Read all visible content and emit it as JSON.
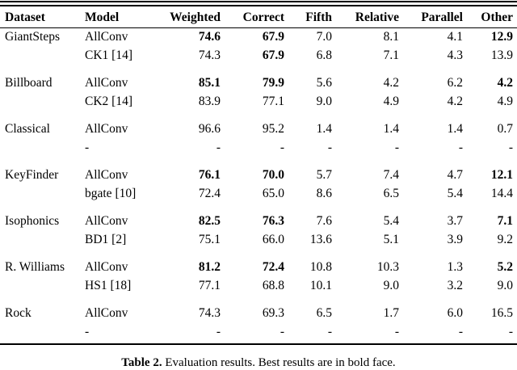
{
  "page": {
    "background": "#ffffff",
    "text_color": "#000000"
  },
  "table": {
    "columns": [
      "Dataset",
      "Model",
      "Weighted",
      "Correct",
      "Fifth",
      "Relative",
      "Parallel",
      "Other"
    ],
    "groups": [
      {
        "dataset": "GiantSteps",
        "rows": [
          {
            "model": "AllConv",
            "values": [
              "74.6",
              "67.9",
              "7.0",
              "8.1",
              "4.1",
              "12.9"
            ],
            "bold": [
              1,
              1,
              0,
              0,
              0,
              1
            ]
          },
          {
            "model": "CK1 [14]",
            "values": [
              "74.3",
              "67.9",
              "6.8",
              "7.1",
              "4.3",
              "13.9"
            ],
            "bold": [
              0,
              1,
              0,
              0,
              0,
              0
            ]
          }
        ]
      },
      {
        "dataset": "Billboard",
        "rows": [
          {
            "model": "AllConv",
            "values": [
              "85.1",
              "79.9",
              "5.6",
              "4.2",
              "6.2",
              "4.2"
            ],
            "bold": [
              1,
              1,
              0,
              0,
              0,
              1
            ]
          },
          {
            "model": "CK2 [14]",
            "values": [
              "83.9",
              "77.1",
              "9.0",
              "4.9",
              "4.2",
              "4.9"
            ],
            "bold": [
              0,
              0,
              0,
              0,
              0,
              0
            ]
          }
        ]
      },
      {
        "dataset": "Classical",
        "rows": [
          {
            "model": "AllConv",
            "values": [
              "96.6",
              "95.2",
              "1.4",
              "1.4",
              "1.4",
              "0.7"
            ],
            "bold": [
              0,
              0,
              0,
              0,
              0,
              0
            ]
          },
          {
            "model": "-",
            "values": [
              "-",
              "-",
              "-",
              "-",
              "-",
              "-"
            ],
            "bold": [
              0,
              0,
              0,
              0,
              0,
              0
            ]
          }
        ]
      },
      {
        "dataset": "KeyFinder",
        "rows": [
          {
            "model": "AllConv",
            "values": [
              "76.1",
              "70.0",
              "5.7",
              "7.4",
              "4.7",
              "12.1"
            ],
            "bold": [
              1,
              1,
              0,
              0,
              0,
              1
            ]
          },
          {
            "model": "bgate [10]",
            "values": [
              "72.4",
              "65.0",
              "8.6",
              "6.5",
              "5.4",
              "14.4"
            ],
            "bold": [
              0,
              0,
              0,
              0,
              0,
              0
            ]
          }
        ]
      },
      {
        "dataset": "Isophonics",
        "rows": [
          {
            "model": "AllConv",
            "values": [
              "82.5",
              "76.3",
              "7.6",
              "5.4",
              "3.7",
              "7.1"
            ],
            "bold": [
              1,
              1,
              0,
              0,
              0,
              1
            ]
          },
          {
            "model": "BD1 [2]",
            "values": [
              "75.1",
              "66.0",
              "13.6",
              "5.1",
              "3.9",
              "9.2"
            ],
            "bold": [
              0,
              0,
              0,
              0,
              0,
              0
            ]
          }
        ]
      },
      {
        "dataset": "R. Williams",
        "rows": [
          {
            "model": "AllConv",
            "values": [
              "81.2",
              "72.4",
              "10.8",
              "10.3",
              "1.3",
              "5.2"
            ],
            "bold": [
              1,
              1,
              0,
              0,
              0,
              1
            ]
          },
          {
            "model": "HS1 [18]",
            "values": [
              "77.1",
              "68.8",
              "10.1",
              "9.0",
              "3.2",
              "9.0"
            ],
            "bold": [
              0,
              0,
              0,
              0,
              0,
              0
            ]
          }
        ]
      },
      {
        "dataset": "Rock",
        "rows": [
          {
            "model": "AllConv",
            "values": [
              "74.3",
              "69.3",
              "6.5",
              "1.7",
              "6.0",
              "16.5"
            ],
            "bold": [
              0,
              0,
              0,
              0,
              0,
              0
            ]
          },
          {
            "model": "-",
            "values": [
              "-",
              "-",
              "-",
              "-",
              "-",
              "-"
            ],
            "bold": [
              0,
              0,
              0,
              0,
              0,
              0
            ]
          }
        ]
      }
    ],
    "caption": {
      "label": "Table 2.",
      "text": "Evaluation results. Best results are in bold face."
    }
  }
}
